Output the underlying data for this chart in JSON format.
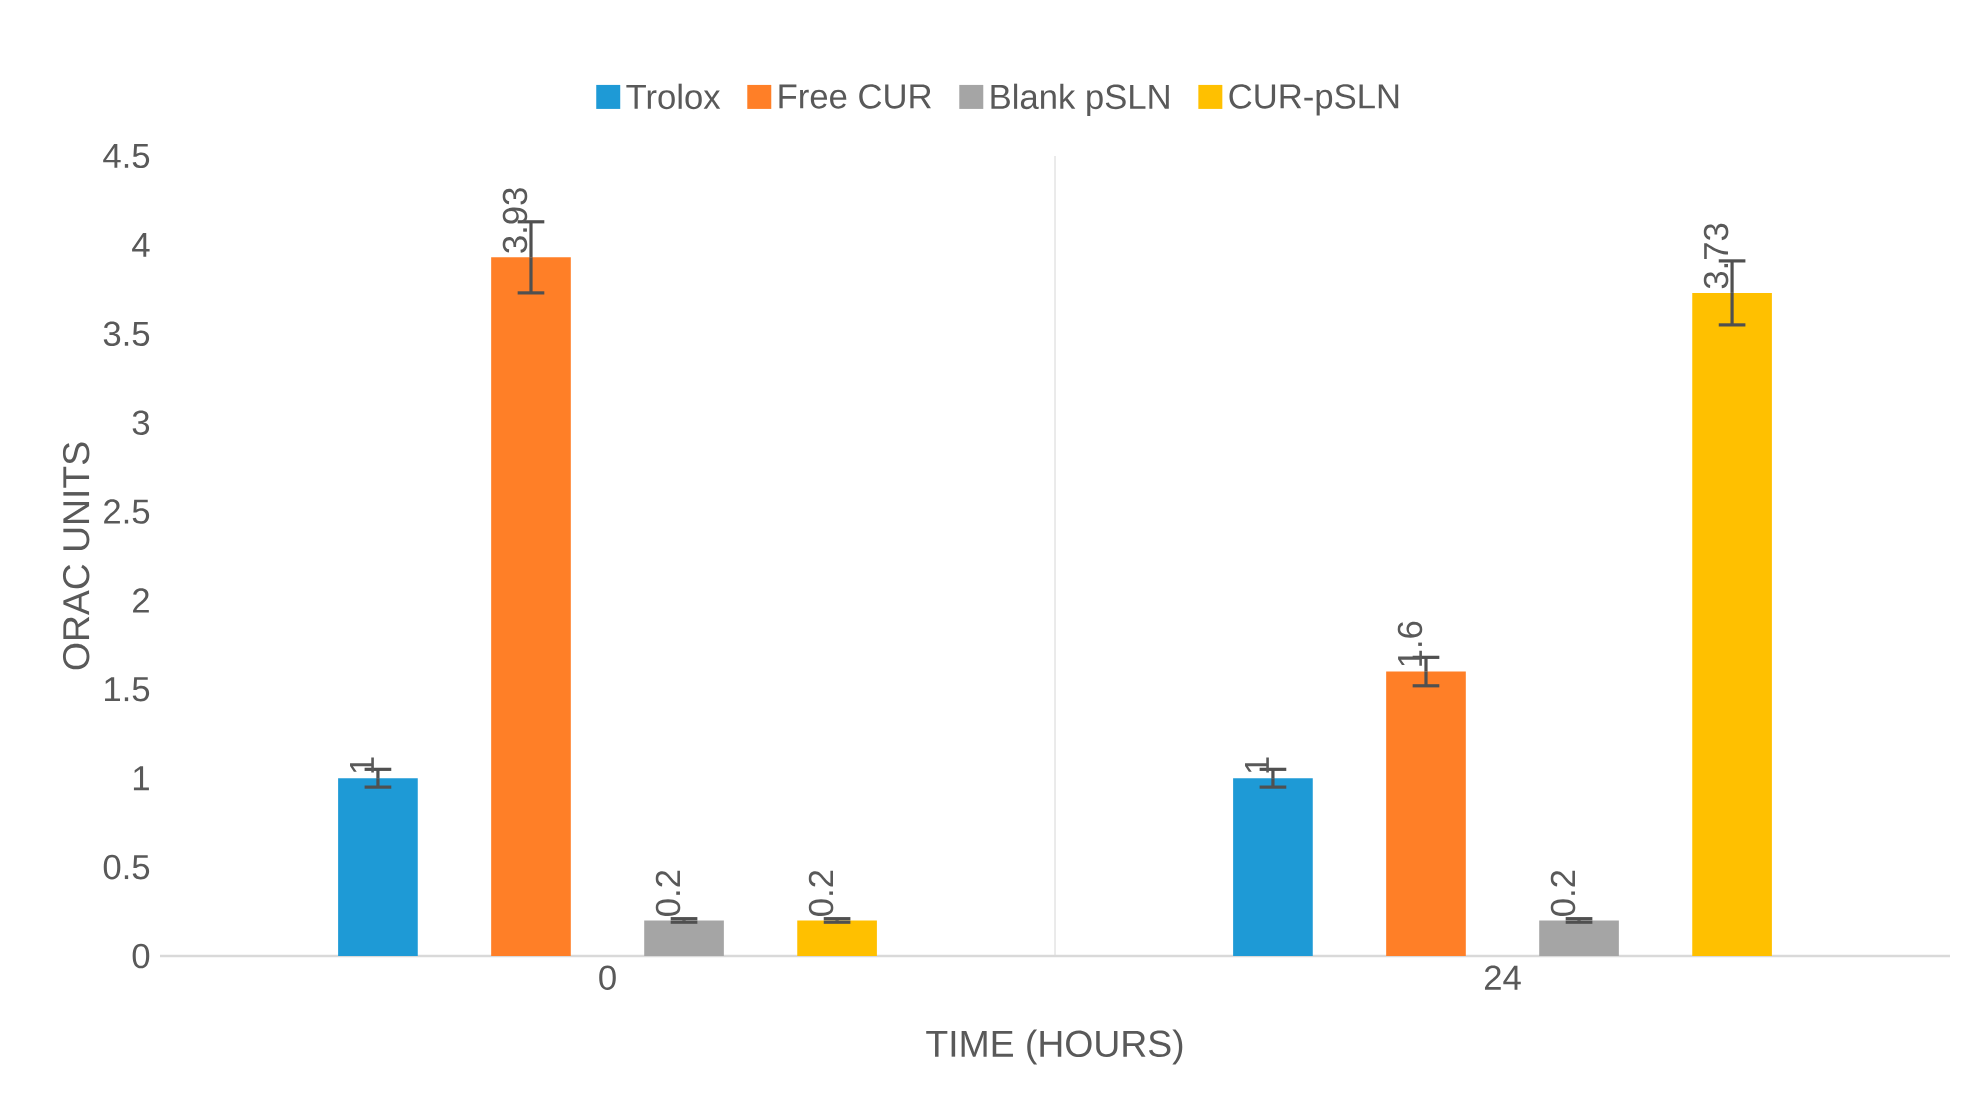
{
  "chart_data": {
    "type": "bar",
    "xlabel": "TIME (HOURS)",
    "ylabel": "ORAC UNITS",
    "categories": [
      "0",
      "24"
    ],
    "series": [
      {
        "name": "Trolox",
        "color": "#1e9ad6",
        "values": [
          1,
          1
        ],
        "errors": [
          0.05,
          0.05
        ]
      },
      {
        "name": "Free CUR",
        "color": "#ff7f27",
        "values": [
          3.93,
          1.6
        ],
        "errors": [
          0.2,
          0.08
        ]
      },
      {
        "name": "Blank pSLN",
        "color": "#a5a5a5",
        "values": [
          0.2,
          0.2
        ],
        "errors": [
          0.01,
          0.01
        ]
      },
      {
        "name": "CUR-pSLN",
        "color": "#ffc000",
        "values": [
          0.2,
          3.73
        ],
        "errors": [
          0.01,
          0.18
        ]
      }
    ],
    "ylim": [
      0,
      4.5
    ],
    "yticks": [
      0,
      0.5,
      1,
      1.5,
      2,
      2.5,
      3,
      3.5,
      4,
      4.5
    ],
    "grid": "x",
    "legend": "top",
    "data_labels": true
  }
}
